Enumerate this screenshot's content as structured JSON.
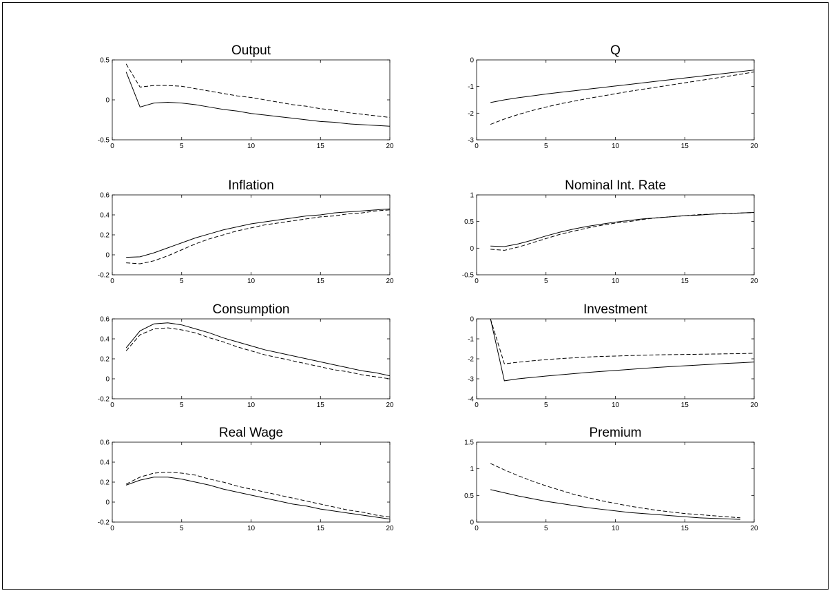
{
  "chart_data": [
    {
      "type": "line",
      "title": "Output",
      "xlim": [
        0,
        20
      ],
      "ylim": [
        -0.5,
        0.5
      ],
      "xticks": [
        0,
        5,
        10,
        15,
        20
      ],
      "yticks": [
        -0.5,
        0,
        0.5
      ],
      "x": [
        1,
        2,
        3,
        4,
        5,
        6,
        7,
        8,
        9,
        10,
        11,
        12,
        13,
        14,
        15,
        16,
        17,
        18,
        19,
        20
      ],
      "series": [
        {
          "style": "solid",
          "values": [
            0.35,
            -0.09,
            -0.04,
            -0.03,
            -0.04,
            -0.06,
            -0.09,
            -0.12,
            -0.14,
            -0.17,
            -0.19,
            -0.21,
            -0.23,
            -0.25,
            -0.27,
            -0.28,
            -0.3,
            -0.31,
            -0.32,
            -0.33
          ]
        },
        {
          "style": "dashed",
          "values": [
            0.45,
            0.16,
            0.18,
            0.18,
            0.17,
            0.14,
            0.11,
            0.08,
            0.05,
            0.03,
            0.0,
            -0.03,
            -0.06,
            -0.08,
            -0.11,
            -0.13,
            -0.16,
            -0.18,
            -0.2,
            -0.22
          ]
        }
      ]
    },
    {
      "type": "line",
      "title": "Q",
      "xlim": [
        0,
        20
      ],
      "ylim": [
        -3,
        0
      ],
      "xticks": [
        0,
        5,
        10,
        15,
        20
      ],
      "yticks": [
        -3,
        -2,
        -1,
        0
      ],
      "x": [
        1,
        2,
        3,
        4,
        5,
        6,
        7,
        8,
        9,
        10,
        11,
        12,
        13,
        14,
        15,
        16,
        17,
        18,
        19,
        20
      ],
      "series": [
        {
          "style": "solid",
          "values": [
            -1.6,
            -1.5,
            -1.42,
            -1.35,
            -1.28,
            -1.22,
            -1.16,
            -1.1,
            -1.04,
            -0.98,
            -0.92,
            -0.86,
            -0.8,
            -0.74,
            -0.68,
            -0.62,
            -0.56,
            -0.5,
            -0.44,
            -0.38
          ]
        },
        {
          "style": "dashed",
          "values": [
            -2.42,
            -2.22,
            -2.05,
            -1.9,
            -1.77,
            -1.65,
            -1.55,
            -1.45,
            -1.36,
            -1.27,
            -1.18,
            -1.1,
            -1.02,
            -0.94,
            -0.86,
            -0.78,
            -0.7,
            -0.62,
            -0.54,
            -0.45
          ]
        }
      ]
    },
    {
      "type": "line",
      "title": "Inflation",
      "xlim": [
        0,
        20
      ],
      "ylim": [
        -0.2,
        0.6
      ],
      "xticks": [
        0,
        5,
        10,
        15,
        20
      ],
      "yticks": [
        -0.2,
        0,
        0.2,
        0.4,
        0.6
      ],
      "x": [
        1,
        2,
        3,
        4,
        5,
        6,
        7,
        8,
        9,
        10,
        11,
        12,
        13,
        14,
        15,
        16,
        17,
        18,
        19,
        20
      ],
      "series": [
        {
          "style": "solid",
          "values": [
            -0.025,
            -0.02,
            0.02,
            0.07,
            0.12,
            0.17,
            0.21,
            0.25,
            0.28,
            0.31,
            0.33,
            0.35,
            0.37,
            0.39,
            0.4,
            0.42,
            0.43,
            0.44,
            0.45,
            0.46
          ]
        },
        {
          "style": "dashed",
          "values": [
            -0.08,
            -0.09,
            -0.06,
            -0.01,
            0.05,
            0.11,
            0.16,
            0.2,
            0.24,
            0.27,
            0.3,
            0.32,
            0.34,
            0.36,
            0.38,
            0.39,
            0.41,
            0.42,
            0.44,
            0.45
          ]
        }
      ]
    },
    {
      "type": "line",
      "title": "Nominal Int. Rate",
      "xlim": [
        0,
        20
      ],
      "ylim": [
        -0.5,
        1
      ],
      "xticks": [
        0,
        5,
        10,
        15,
        20
      ],
      "yticks": [
        -0.5,
        0,
        0.5,
        1
      ],
      "x": [
        1,
        2,
        3,
        4,
        5,
        6,
        7,
        8,
        9,
        10,
        11,
        12,
        13,
        14,
        15,
        16,
        17,
        18,
        19,
        20
      ],
      "series": [
        {
          "style": "solid",
          "values": [
            0.04,
            0.03,
            0.08,
            0.15,
            0.23,
            0.3,
            0.36,
            0.41,
            0.45,
            0.49,
            0.52,
            0.55,
            0.57,
            0.59,
            0.61,
            0.62,
            0.64,
            0.65,
            0.66,
            0.67
          ]
        },
        {
          "style": "dashed",
          "values": [
            -0.02,
            -0.04,
            0.02,
            0.1,
            0.18,
            0.26,
            0.32,
            0.38,
            0.43,
            0.47,
            0.5,
            0.54,
            0.57,
            0.59,
            0.61,
            0.63,
            0.64,
            0.65,
            0.66,
            0.67
          ]
        }
      ]
    },
    {
      "type": "line",
      "title": "Consumption",
      "xlim": [
        0,
        20
      ],
      "ylim": [
        -0.2,
        0.6
      ],
      "xticks": [
        0,
        5,
        10,
        15,
        20
      ],
      "yticks": [
        -0.2,
        0,
        0.2,
        0.4,
        0.6
      ],
      "x": [
        1,
        2,
        3,
        4,
        5,
        6,
        7,
        8,
        9,
        10,
        11,
        12,
        13,
        14,
        15,
        16,
        17,
        18,
        19,
        20
      ],
      "series": [
        {
          "style": "solid",
          "values": [
            0.31,
            0.48,
            0.55,
            0.56,
            0.54,
            0.5,
            0.46,
            0.41,
            0.37,
            0.33,
            0.29,
            0.26,
            0.23,
            0.2,
            0.17,
            0.14,
            0.11,
            0.08,
            0.06,
            0.03
          ]
        },
        {
          "style": "dashed",
          "values": [
            0.28,
            0.44,
            0.5,
            0.51,
            0.49,
            0.46,
            0.41,
            0.37,
            0.32,
            0.28,
            0.24,
            0.21,
            0.18,
            0.15,
            0.12,
            0.09,
            0.07,
            0.04,
            0.02,
            0.0
          ]
        }
      ]
    },
    {
      "type": "line",
      "title": "Investment",
      "xlim": [
        0,
        20
      ],
      "ylim": [
        -4,
        0
      ],
      "xticks": [
        0,
        5,
        10,
        15,
        20
      ],
      "yticks": [
        -4,
        -3,
        -2,
        -1,
        0
      ],
      "x": [
        1,
        2,
        3,
        4,
        5,
        6,
        7,
        8,
        9,
        10,
        11,
        12,
        13,
        14,
        15,
        16,
        17,
        18,
        19,
        20
      ],
      "series": [
        {
          "style": "solid",
          "values": [
            0,
            -3.1,
            -3.0,
            -2.93,
            -2.86,
            -2.8,
            -2.74,
            -2.68,
            -2.63,
            -2.58,
            -2.53,
            -2.48,
            -2.43,
            -2.39,
            -2.35,
            -2.31,
            -2.27,
            -2.23,
            -2.2,
            -2.16
          ]
        },
        {
          "style": "dashed",
          "values": [
            0,
            -2.25,
            -2.17,
            -2.1,
            -2.04,
            -1.99,
            -1.95,
            -1.91,
            -1.88,
            -1.86,
            -1.84,
            -1.82,
            -1.8,
            -1.79,
            -1.78,
            -1.77,
            -1.76,
            -1.75,
            -1.74,
            -1.72
          ]
        }
      ]
    },
    {
      "type": "line",
      "title": "Real Wage",
      "xlim": [
        0,
        20
      ],
      "ylim": [
        -0.2,
        0.6
      ],
      "xticks": [
        0,
        5,
        10,
        15,
        20
      ],
      "yticks": [
        -0.2,
        0,
        0.2,
        0.4,
        0.6
      ],
      "x": [
        1,
        2,
        3,
        4,
        5,
        6,
        7,
        8,
        9,
        10,
        11,
        12,
        13,
        14,
        15,
        16,
        17,
        18,
        19,
        20
      ],
      "series": [
        {
          "style": "solid",
          "values": [
            0.17,
            0.22,
            0.25,
            0.25,
            0.23,
            0.2,
            0.17,
            0.13,
            0.1,
            0.07,
            0.04,
            0.01,
            -0.02,
            -0.04,
            -0.07,
            -0.09,
            -0.11,
            -0.13,
            -0.15,
            -0.17
          ]
        },
        {
          "style": "dashed",
          "values": [
            0.18,
            0.25,
            0.29,
            0.3,
            0.29,
            0.27,
            0.23,
            0.2,
            0.16,
            0.13,
            0.1,
            0.07,
            0.04,
            0.01,
            -0.02,
            -0.05,
            -0.08,
            -0.1,
            -0.13,
            -0.15
          ]
        }
      ]
    },
    {
      "type": "line",
      "title": "Premium",
      "xlim": [
        0,
        20
      ],
      "ylim": [
        0,
        1.5
      ],
      "xticks": [
        0,
        5,
        10,
        15,
        20
      ],
      "yticks": [
        0,
        0.5,
        1,
        1.5
      ],
      "x": [
        1,
        2,
        3,
        4,
        5,
        6,
        7,
        8,
        9,
        10,
        11,
        12,
        13,
        14,
        15,
        16,
        17,
        18,
        19
      ],
      "series": [
        {
          "style": "solid",
          "values": [
            0.61,
            0.55,
            0.49,
            0.44,
            0.39,
            0.35,
            0.31,
            0.27,
            0.24,
            0.21,
            0.18,
            0.16,
            0.14,
            0.12,
            0.1,
            0.08,
            0.07,
            0.06,
            0.05
          ]
        },
        {
          "style": "dashed",
          "values": [
            1.1,
            0.98,
            0.87,
            0.77,
            0.68,
            0.6,
            0.52,
            0.46,
            0.4,
            0.35,
            0.3,
            0.26,
            0.22,
            0.19,
            0.16,
            0.14,
            0.12,
            0.1,
            0.08
          ]
        }
      ]
    }
  ]
}
